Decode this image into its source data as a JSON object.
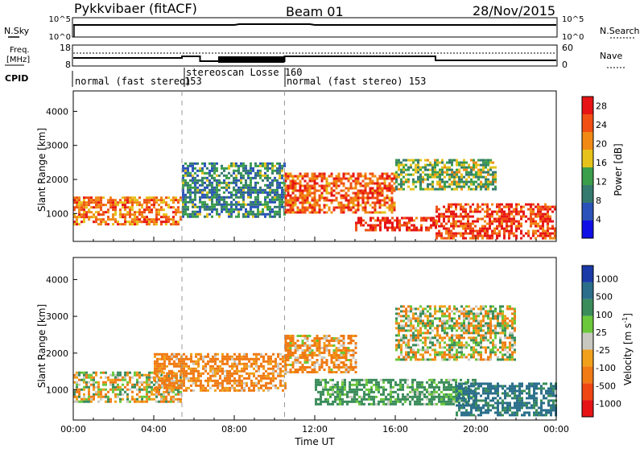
{
  "header": {
    "station": "Pykkvibaer (fitACF)",
    "beam": "Beam 01",
    "date": "28/Nov/2015"
  },
  "top_panels": {
    "nsky_label": "N.Sky",
    "nsky_ticks": [
      "10^5",
      "10^0"
    ],
    "nsearch_label": "N.Search",
    "nsearch_ticks": [
      "10^5",
      "10^0"
    ],
    "freq_label_1": "Freq.",
    "freq_label_2": "[MHz]",
    "freq_ticks": [
      "18",
      "8"
    ],
    "nave_label": "Nave",
    "nave_ticks": [
      "60",
      "0"
    ],
    "cpid_label": "CPID",
    "cpid_segments": [
      {
        "label": "normal (fast stereo)",
        "start": 0.0
      },
      {
        "label": "153",
        "start": 5.4
      },
      {
        "label": "stereoscan Losse 160",
        "start": 5.4
      },
      {
        "label": "normal (fast stereo) 153",
        "start": 10.5
      }
    ]
  },
  "colors": {
    "power": [
      "#1010e6",
      "#2a52b8",
      "#357a6e",
      "#3a9e4a",
      "#e6c21a",
      "#f08a14",
      "#f05014",
      "#e61414"
    ],
    "velocity": [
      "#1a3aa8",
      "#2a6e8a",
      "#3a8c5a",
      "#6ac83a",
      "#c8c8c0",
      "#f0a01a",
      "#f07a14",
      "#f04614",
      "#e61414"
    ]
  },
  "chart_data": [
    {
      "type": "heatmap",
      "title": "",
      "xlabel": "",
      "ylabel": "Slant Range [km]",
      "xlim": [
        0,
        24
      ],
      "ylim": [
        180,
        4600
      ],
      "x_tick_labels": [
        "00:00",
        "04:00",
        "08:00",
        "12:00",
        "16:00",
        "20:00",
        "00:00"
      ],
      "y_ticks": [
        1000,
        2000,
        3000,
        4000
      ],
      "colorbar_label": "Power [dB]",
      "colorbar_ticks": [
        4,
        8,
        12,
        16,
        20,
        24,
        28
      ],
      "colorbar_range": [
        0,
        30
      ],
      "markers_ut": [
        5.4,
        10.5
      ],
      "bands": [
        {
          "t0": 0.0,
          "t1": 5.4,
          "r0": 700,
          "r1": 1500,
          "level": 22
        },
        {
          "t0": 5.4,
          "t1": 10.5,
          "r0": 900,
          "r1": 2500,
          "level": 10
        },
        {
          "t0": 10.5,
          "t1": 16.0,
          "r0": 1000,
          "r1": 2200,
          "level": 24
        },
        {
          "t0": 14.0,
          "t1": 18.0,
          "r0": 500,
          "r1": 900,
          "level": 28
        },
        {
          "t0": 16.0,
          "t1": 21.0,
          "r0": 1700,
          "r1": 2600,
          "level": 14
        },
        {
          "t0": 18.0,
          "t1": 24.0,
          "r0": 300,
          "r1": 1300,
          "level": 26
        }
      ]
    },
    {
      "type": "heatmap",
      "title": "",
      "xlabel": "Time UT",
      "ylabel": "Slant Range [km]",
      "xlim": [
        0,
        24
      ],
      "ylim": [
        180,
        4600
      ],
      "x_tick_labels": [
        "00:00",
        "04:00",
        "08:00",
        "12:00",
        "16:00",
        "20:00",
        "00:00"
      ],
      "y_ticks": [
        1000,
        2000,
        3000,
        4000
      ],
      "colorbar_label": "Velocity [m s-1]",
      "colorbar_ticks": [
        1000,
        500,
        100,
        25,
        -25,
        -100,
        -500,
        -1000
      ],
      "markers_ut": [
        5.4,
        10.5
      ],
      "bands": [
        {
          "t0": 0.0,
          "t1": 5.4,
          "r0": 700,
          "r1": 1500,
          "level": 0
        },
        {
          "t0": 4.0,
          "t1": 10.5,
          "r0": 1000,
          "r1": 2000,
          "level": -200
        },
        {
          "t0": 10.5,
          "t1": 14.0,
          "r0": 1500,
          "r1": 2500,
          "level": -150
        },
        {
          "t0": 12.0,
          "t1": 20.0,
          "r0": 600,
          "r1": 1300,
          "level": 200
        },
        {
          "t0": 16.0,
          "t1": 22.0,
          "r0": 1800,
          "r1": 3300,
          "level": 0
        },
        {
          "t0": 19.0,
          "t1": 24.0,
          "r0": 300,
          "r1": 1200,
          "level": 600
        }
      ]
    }
  ]
}
